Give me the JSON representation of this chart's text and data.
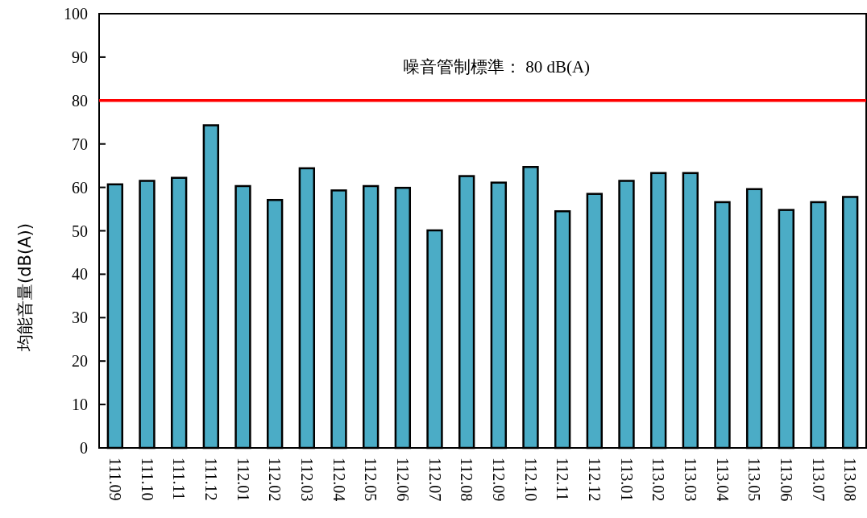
{
  "chart_data": {
    "type": "bar",
    "ylabel": "均能音量(dB(A))",
    "categories": [
      "111.09",
      "111.10",
      "111.11",
      "111.12",
      "112.01",
      "112.02",
      "112.03",
      "112.04",
      "112.05",
      "112.06",
      "112.07",
      "112.08",
      "112.09",
      "112.10",
      "112.11",
      "112.12",
      "113.01",
      "113.02",
      "113.03",
      "113.04",
      "113.05",
      "113.06",
      "113.07",
      "113.08"
    ],
    "values": [
      60.7,
      61.5,
      62.2,
      74.3,
      60.3,
      57.1,
      64.4,
      59.3,
      60.3,
      59.9,
      50.1,
      62.6,
      61.1,
      64.7,
      54.5,
      58.5,
      61.5,
      63.3,
      63.3,
      56.6,
      59.6,
      54.8,
      56.6,
      57.8
    ],
    "color": "#4bacc6",
    "ylim": [
      0,
      100
    ],
    "yticks": [
      0,
      10,
      20,
      30,
      40,
      50,
      60,
      70,
      80,
      90,
      100
    ],
    "ref_lines": [
      {
        "axis": "y",
        "value": 80,
        "label": "噪音管制標準： 80 dB(A)",
        "color": "#ff0000"
      }
    ]
  }
}
